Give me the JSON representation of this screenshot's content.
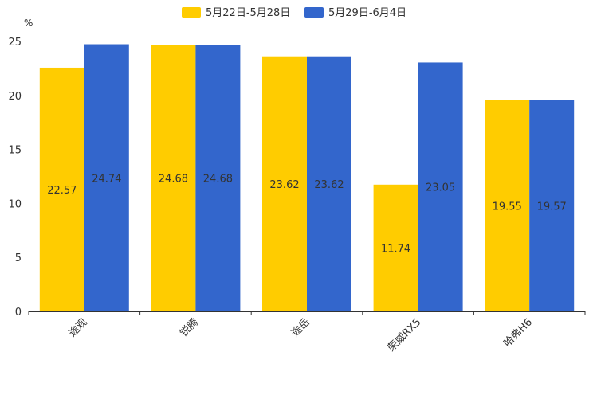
{
  "chart_data": {
    "type": "bar",
    "unit": "%",
    "categories": [
      "途观",
      "锐腾",
      "途岳",
      "荣威RX5",
      "哈弗H6"
    ],
    "series": [
      {
        "name": "5月22日-5月28日",
        "color": "#ffcc00",
        "values": [
          22.57,
          24.68,
          23.62,
          11.74,
          19.55
        ]
      },
      {
        "name": "5月29日-6月4日",
        "color": "#3366cc",
        "values": [
          24.74,
          24.68,
          23.62,
          23.05,
          19.57
        ]
      }
    ],
    "ylim": [
      0,
      25
    ],
    "yticks": [
      0,
      5,
      10,
      15,
      20,
      25
    ],
    "legend_position": "top-center",
    "grid": false
  }
}
